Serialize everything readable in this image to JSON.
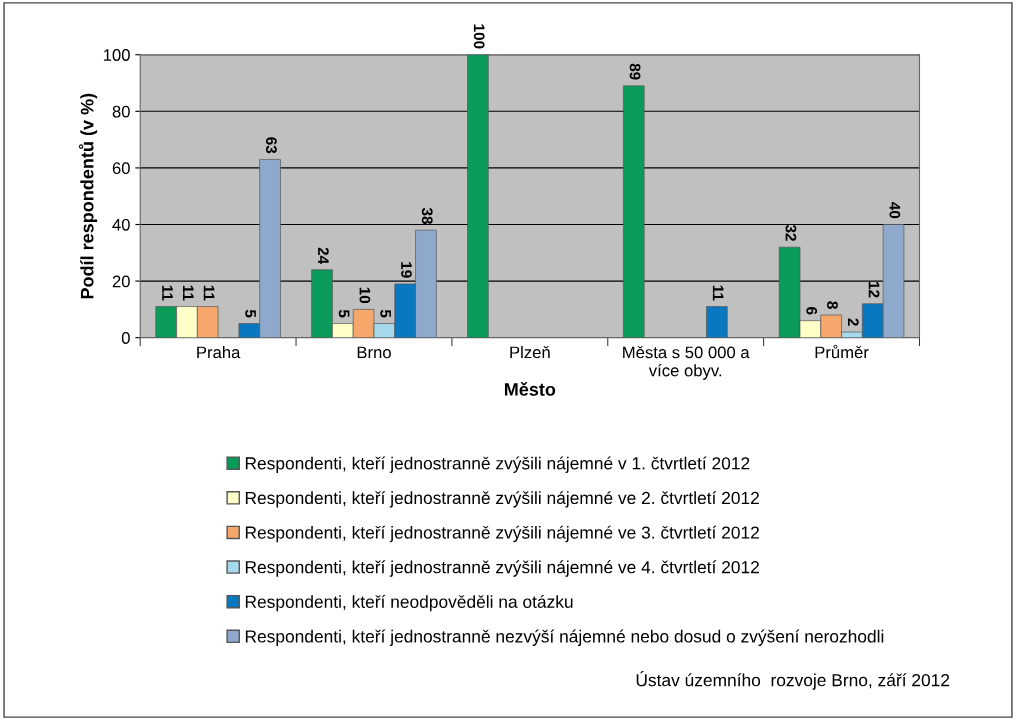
{
  "chart_data": {
    "type": "bar",
    "xlabel": "Město",
    "ylabel": "Podíl respondentů (v %)",
    "categories": [
      "Praha",
      "Brno",
      "Plzeň",
      "Města s 50 000 a\nvíce obyv.",
      "Průměr"
    ],
    "series": [
      {
        "name": "Respondenti, kteří jednostranně zvýšili nájemné v 1. čtvrtletí 2012",
        "color": "#0a9a5a",
        "values": [
          11,
          24,
          100,
          89,
          32
        ]
      },
      {
        "name": "Respondenti, kteří jednostranně zvýšili nájemné ve 2. čtvrtletí 2012",
        "color": "#ffffc8",
        "values": [
          11,
          5,
          null,
          null,
          6
        ]
      },
      {
        "name": "Respondenti, kteří jednostranně zvýšili nájemné ve 3. čtvrtletí 2012",
        "color": "#f5a76c",
        "values": [
          11,
          10,
          null,
          null,
          8
        ]
      },
      {
        "name": "Respondenti, kteří jednostranně zvýšili nájemné ve 4. čtvrtletí 2012",
        "color": "#a6d9ec",
        "values": [
          null,
          5,
          null,
          null,
          2
        ]
      },
      {
        "name": "Respondenti, kteří neodpověděli na otázku",
        "color": "#0a78c0",
        "values": [
          5,
          19,
          null,
          11,
          12
        ]
      },
      {
        "name": "Respondenti, kteří jednostranně nezvýší nájemné nebo dosud o zvýšení nerozhodli",
        "color": "#8fa9cd",
        "values": [
          63,
          38,
          null,
          null,
          40
        ]
      }
    ],
    "ylim": [
      0,
      100
    ],
    "yticks": [
      0,
      20,
      40,
      60,
      80,
      100
    ],
    "grid": "y",
    "legend": "bottom",
    "data_labels": true,
    "annotations": [
      "Ústav územního  rozvoje Brno, září 2012"
    ]
  }
}
